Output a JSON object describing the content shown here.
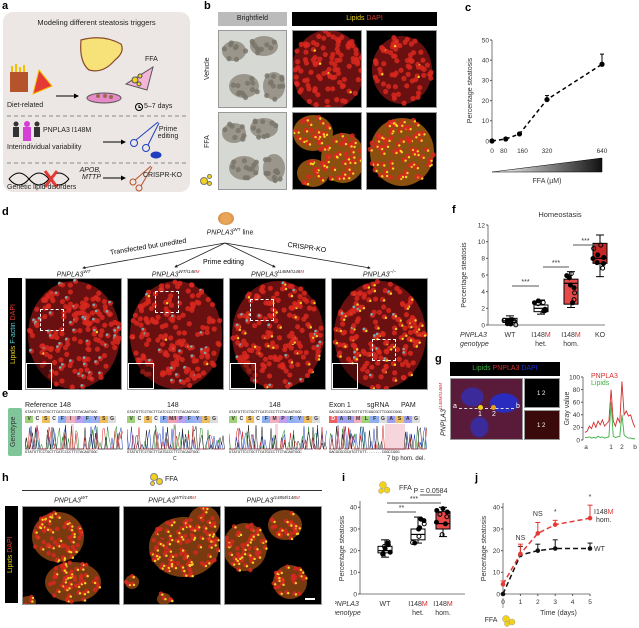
{
  "panel_labels": {
    "a": "a",
    "b": "b",
    "c": "c",
    "d": "d",
    "e": "e",
    "f": "f",
    "g": "g",
    "h": "h",
    "i": "i",
    "j": "j"
  },
  "a": {
    "title": "Modeling different steatosis triggers",
    "ffa": "FFA",
    "diet": "Diet-related",
    "days": "5–7 days",
    "pnpla3": "PNPLA3 I148M",
    "interind": "Interindividual variability",
    "prime": "Prime editing",
    "genes": "APOB, MTTP",
    "crispr": "CRISPR-KO",
    "genetic": "Genetic lipid disorders"
  },
  "b": {
    "brightfield": "Brightfield",
    "lipids": "Lipids",
    "dapi": "DAPI",
    "vehicle": "Vehicle",
    "ffa": "FFA"
  },
  "colors": {
    "lipids": "#e8d21c",
    "dapi": "#e03a2a",
    "mutant": "#d32f2f",
    "factin": "#5fd3d9",
    "pnpla3": "#d32f2f",
    "g_lipids": "#3cb043",
    "g_dapi": "#2230d0",
    "box_hom": "#e84a4a",
    "box_ko": "#c62828",
    "genotype_strip": "#7fc79a"
  },
  "d": {
    "root": "PNPLA3",
    "root_sup": "WT",
    "root_suffix": " line",
    "branch1": "Transfected but unedited",
    "branch2": "Prime editing",
    "branch3": "CRISPR-KO",
    "side": {
      "lipids": "Lipids",
      "factin": "F-actin",
      "dapi": "DAPI"
    },
    "cols": [
      {
        "gene": "PNPLA3",
        "sup": "WT",
        "sup_red": ""
      },
      {
        "gene": "PNPLA3",
        "sup": "WT/I148",
        "sup_red": "M"
      },
      {
        "gene": "PNPLA3",
        "sup": "I148M/I148",
        "sup_red": "M"
      },
      {
        "gene": "PNPLA3",
        "sup": "−/−",
        "sup_red": ""
      }
    ]
  },
  "e": {
    "side": "Genotype",
    "blocks": [
      {
        "title": "Reference 148",
        "top": "GTATGTTCCTGCTTCATCCCCTTCTACAGTGGC",
        "aa": [
          "V",
          "C",
          "S",
          "C",
          "F",
          "I",
          "P",
          "F",
          "Y",
          "S",
          "G"
        ],
        "bottom": "GTATGTTCCTGCTTCATCCCCTTCTACAGTGGC",
        "note": ""
      },
      {
        "title": "148",
        "top": "GTATGTTCCTGCTTCATCCCCTTCTACAGTGGC",
        "aa": [
          "V",
          "C",
          "S",
          "C",
          "F",
          "M/I",
          "P",
          "F",
          "Y",
          "S",
          "G"
        ],
        "bottom": "GTATGTTCCTGCTTCATGCCCTTCTACAGTGGC",
        "note": "C"
      },
      {
        "title": "148",
        "top": "GTATGTTCCTGCTTCATCCCCTTCTACAGTGGC",
        "aa": [
          "V",
          "C",
          "S",
          "C",
          "F",
          "M",
          "P",
          "F",
          "Y",
          "S",
          "G"
        ],
        "bottom": "GTATGTTCCTGCTTCATGCCCTTCTACAGTGGC",
        "note": ""
      },
      {
        "title": "Exon 1",
        "sgrna": "sgRNA",
        "pam": "PAM",
        "top": "GACGCGCGCATGTTGTTCGGCGCTTCGGCCGGG",
        "aa": [
          "D",
          "A",
          "R",
          "M",
          "L",
          "F",
          "G",
          "A",
          "S",
          "A",
          "G"
        ],
        "bottom": "GACGCGCGCATGTTGTT.......CGGCCGGG",
        "note": "7 bp hom. del."
      }
    ]
  },
  "g": {
    "lipids": "Lipids",
    "pnpla3": "PNPLA3",
    "dapi": "DAPI",
    "side_gene": "PNPLA3",
    "side_sup": "I148M/I148M",
    "a": "a",
    "b": "b",
    "p1": "1",
    "p2": "2"
  },
  "h": {
    "ffa": "FFA",
    "side": {
      "lipids": "Lipids",
      "dapi": "DAPI"
    },
    "cols": [
      {
        "gene": "PNPLA3",
        "sup": "WT",
        "sup_red": ""
      },
      {
        "gene": "PNPLA3",
        "sup": "WT/I148",
        "sup_red": "M"
      },
      {
        "gene": "PNPLA3",
        "sup": "I148M/I148",
        "sup_red": "M"
      }
    ]
  },
  "chart_data": [
    {
      "id": "c",
      "type": "line",
      "ylabel": "Percentage steatosis",
      "xlabel": "FFA (µM)",
      "x": [
        0,
        80,
        160,
        320,
        640
      ],
      "y": [
        0,
        1,
        3.5,
        20.5,
        38
      ],
      "err": [
        0.3,
        0.5,
        0.8,
        2,
        5
      ],
      "xticks": [
        0,
        80,
        160,
        320,
        640
      ],
      "yticks": [
        0,
        10,
        20,
        30,
        40,
        50
      ],
      "ylim": [
        0,
        50
      ],
      "xlim": [
        0,
        640
      ],
      "line_style": "dashed",
      "grid": false
    },
    {
      "id": "f",
      "type": "box",
      "title": "Homeostasis",
      "ylabel": "Percentage steatosis",
      "categories": [
        "WT",
        "I148M het.",
        "I148M hom.",
        "KO"
      ],
      "category_axis_label": "PNPLA3 genotype",
      "yticks": [
        0,
        2,
        4,
        6,
        8,
        10,
        12
      ],
      "ylim": [
        0,
        12
      ],
      "boxes": [
        {
          "min": 0,
          "q1": 0.3,
          "median": 0.5,
          "q3": 0.8,
          "max": 1.1
        },
        {
          "min": 1.3,
          "q1": 1.6,
          "median": 2,
          "q3": 2.4,
          "max": 3
        },
        {
          "min": 2.1,
          "q1": 2.5,
          "median": 5,
          "q3": 5.5,
          "max": 6.4
        },
        {
          "min": 5.8,
          "q1": 7.4,
          "median": 8,
          "q3": 9.8,
          "max": 10.8
        }
      ],
      "significance": [
        {
          "from": 0,
          "to": 1,
          "label": "***"
        },
        {
          "from": 1,
          "to": 2,
          "label": "***"
        },
        {
          "from": 2,
          "to": 3,
          "label": "***"
        }
      ]
    },
    {
      "id": "g",
      "type": "line",
      "ylabel": "Gray value",
      "yticks": [
        0,
        20,
        40,
        60,
        80,
        100
      ],
      "ylim": [
        0,
        100
      ],
      "xticks": [
        "a",
        "1",
        "2",
        "b"
      ],
      "series": [
        {
          "name": "PNPLA3",
          "values": [
            12,
            14,
            22,
            18,
            28,
            20,
            30,
            24,
            32,
            22,
            26,
            30,
            80,
            30,
            22,
            35,
            28,
            93,
            40,
            46,
            38,
            40,
            28,
            20
          ]
        },
        {
          "name": "Lipids",
          "values": [
            4,
            4,
            5,
            3,
            4,
            3,
            6,
            4,
            5,
            3,
            4,
            5,
            60,
            6,
            4,
            5,
            6,
            40,
            8,
            5,
            3,
            3,
            2,
            2
          ]
        }
      ]
    },
    {
      "id": "i",
      "type": "box",
      "ylabel": "Percentage steatosis",
      "categories": [
        "WT",
        "I148M het.",
        "I148M hom."
      ],
      "category_axis_label": "PNPLA3 genotype",
      "yticks": [
        0,
        10,
        20,
        30,
        40
      ],
      "ylim": [
        0,
        42
      ],
      "boxes": [
        {
          "min": 17,
          "q1": 19,
          "median": 20,
          "q3": 22,
          "max": 25
        },
        {
          "min": 23.5,
          "q1": 25,
          "median": 27.5,
          "q3": 30,
          "max": 35.5
        },
        {
          "min": 26.5,
          "q1": 30,
          "median": 32.5,
          "q3": 38,
          "max": 40
        }
      ],
      "significance": [
        {
          "from": 0,
          "to": 1,
          "label": "**"
        },
        {
          "from": 0,
          "to": 2,
          "label": "***"
        },
        {
          "from": 1,
          "to": 2,
          "label": "P = 0.0584"
        }
      ],
      "ffa": "FFA"
    },
    {
      "id": "j",
      "type": "line",
      "ylabel": "Percentage steatosis",
      "xlabel": "Time (days)",
      "xticks": [
        0,
        1,
        2,
        3,
        4,
        5
      ],
      "yticks": [
        0,
        10,
        20,
        30,
        40
      ],
      "ylim": [
        0,
        42
      ],
      "xlim": [
        0,
        5
      ],
      "ffa": "FFA",
      "series": [
        {
          "name": "WT",
          "x": [
            0,
            1,
            2,
            3,
            5
          ],
          "y": [
            0,
            18,
            20,
            21,
            21
          ],
          "err": [
            0,
            4,
            3,
            4,
            2.5
          ]
        },
        {
          "name": "I148M hom.",
          "x": [
            0,
            1,
            2,
            3,
            5
          ],
          "y": [
            4.5,
            18.5,
            28,
            32,
            35
          ],
          "err": [
            1.5,
            4.5,
            5,
            2,
            6
          ]
        }
      ],
      "annotations": [
        {
          "x": 1,
          "label": "NS"
        },
        {
          "x": 2,
          "label": "NS"
        },
        {
          "x": 3,
          "label": "*"
        },
        {
          "x": 5,
          "label": "*"
        }
      ]
    }
  ]
}
